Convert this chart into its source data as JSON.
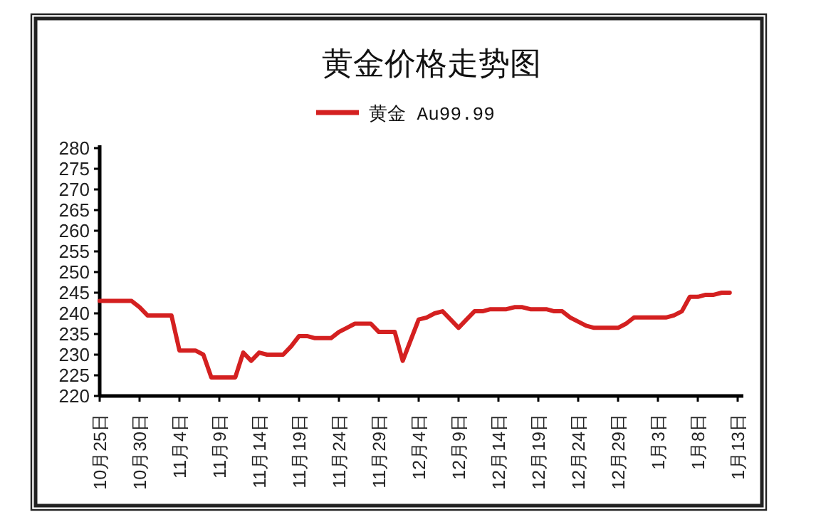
{
  "chart_data": {
    "type": "line",
    "title": "黄金价格走势图",
    "categories": [
      "10月25日",
      null,
      null,
      null,
      null,
      "10月30日",
      null,
      null,
      null,
      null,
      "11月4日",
      null,
      null,
      null,
      null,
      "11月9日",
      null,
      null,
      null,
      null,
      "11月14日",
      null,
      null,
      null,
      null,
      "11月19日",
      null,
      null,
      null,
      null,
      "11月24日",
      null,
      null,
      null,
      null,
      "11月29日",
      null,
      null,
      null,
      null,
      "12月4日",
      null,
      null,
      null,
      null,
      "12月9日",
      null,
      null,
      null,
      null,
      "12月14日",
      null,
      null,
      null,
      null,
      "12月19日",
      null,
      null,
      null,
      null,
      "12月24日",
      null,
      null,
      null,
      null,
      "12月29日",
      null,
      null,
      null,
      null,
      "1月3日",
      null,
      null,
      null,
      null,
      "1月8日",
      null,
      null,
      null,
      null,
      "1月13日"
    ],
    "series": [
      {
        "name": "黄金 Au99.99",
        "color": "#d42020",
        "values": [
          243,
          243,
          243,
          243,
          243,
          241.5,
          239.5,
          239.5,
          239.5,
          239.5,
          231,
          231,
          231,
          230,
          224.5,
          224.5,
          224.5,
          224.5,
          230.5,
          228.5,
          230.5,
          230,
          230,
          230,
          232,
          234.5,
          234.5,
          234,
          234,
          234,
          235.5,
          236.5,
          237.5,
          237.5,
          237.5,
          235.5,
          235.5,
          235.5,
          228.5,
          233.5,
          238.5,
          239,
          240,
          240.5,
          238.5,
          236.5,
          238.5,
          240.5,
          240.5,
          241,
          241,
          241,
          241.5,
          241.5,
          241,
          241,
          241,
          240.5,
          240.5,
          239,
          238,
          237,
          236.5,
          236.5,
          236.5,
          236.5,
          237.5,
          239,
          239,
          239,
          239,
          239,
          239.5,
          240.5,
          244,
          244,
          244.5,
          244.5,
          245,
          245,
          null
        ]
      }
    ],
    "ylim": [
      220,
      280
    ],
    "yticks": [
      220,
      225,
      230,
      235,
      240,
      245,
      250,
      255,
      260,
      265,
      270,
      275,
      280
    ],
    "legend": "top",
    "grid": false,
    "marker": "none",
    "line_style": "solid"
  }
}
